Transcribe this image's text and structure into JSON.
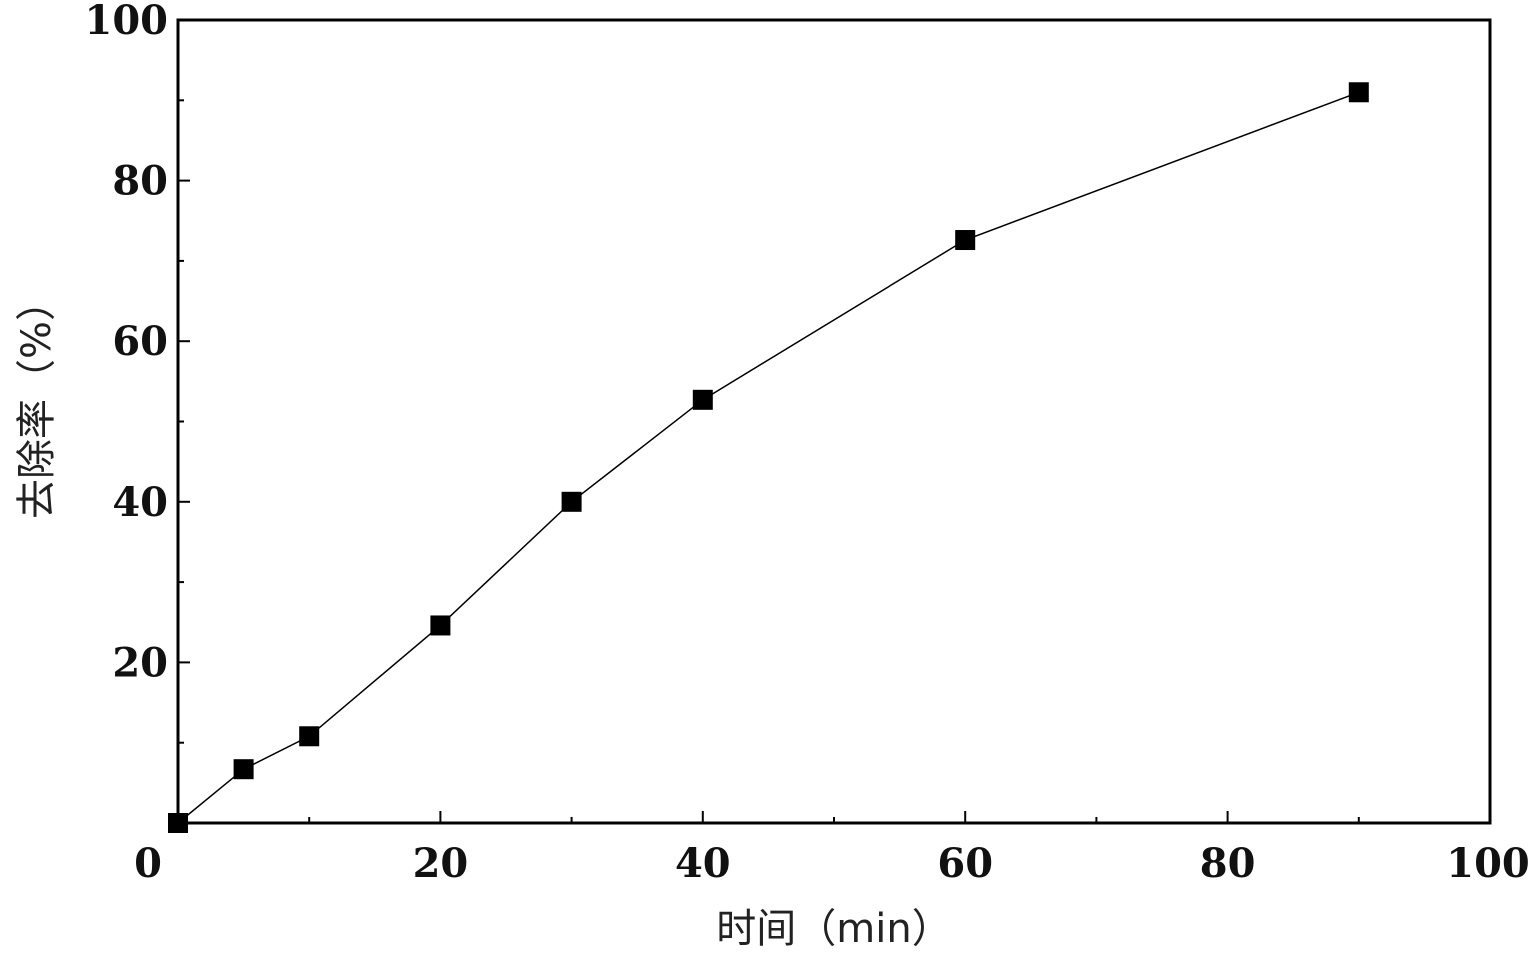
{
  "chart_data": {
    "type": "line",
    "title": "",
    "xlabel": "时间（min）",
    "ylabel": "去除率（%）",
    "xlim": [
      0,
      100
    ],
    "ylim": [
      0,
      100
    ],
    "x_ticks": [
      "0",
      "20",
      "40",
      "60",
      "80",
      "100"
    ],
    "y_ticks": [
      "20",
      "40",
      "60",
      "80",
      "100"
    ],
    "grid": false,
    "legend": "none",
    "series": [
      {
        "marker": "square",
        "color": "#000000",
        "points": [
          {
            "x": 0,
            "y": 0
          },
          {
            "x": 5,
            "y": 6.7
          },
          {
            "x": 10,
            "y": 10.8
          },
          {
            "x": 20,
            "y": 24.6
          },
          {
            "x": 30,
            "y": 40.0
          },
          {
            "x": 40,
            "y": 52.7
          },
          {
            "x": 60,
            "y": 72.6
          },
          {
            "x": 90,
            "y": 91.0
          }
        ]
      }
    ]
  }
}
